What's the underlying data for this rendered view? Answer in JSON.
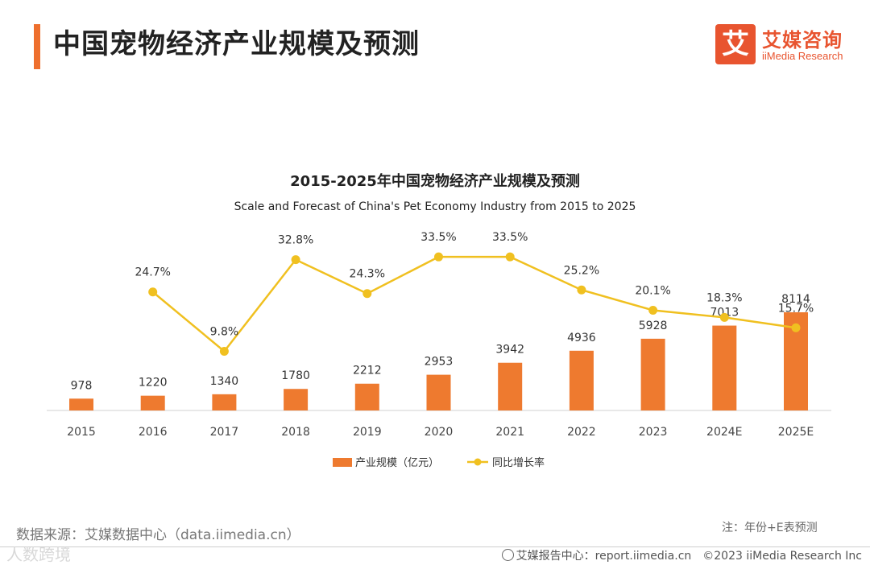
{
  "header": {
    "title": "中国宠物经济产业规模及预测",
    "logo_mark": "艾",
    "logo_cn": "艾媒咨询",
    "logo_en": "iiMedia Research",
    "accent_color": "#ee6f2d"
  },
  "chart_data": {
    "type": "bar",
    "title": "2015-2025年中国宠物经济产业规模及预测",
    "subtitle": "Scale and Forecast of China's Pet Economy Industry from 2015 to 2025",
    "categories": [
      "2015",
      "2016",
      "2017",
      "2018",
      "2019",
      "2020",
      "2021",
      "2022",
      "2023",
      "2024E",
      "2025E"
    ],
    "series": [
      {
        "name": "产业规模（亿元）",
        "type": "bar",
        "color": "#ee7a2f",
        "values": [
          978,
          1220,
          1340,
          1780,
          2212,
          2953,
          3942,
          4936,
          5928,
          7013,
          8114
        ],
        "labels": [
          "978",
          "1220",
          "1340",
          "1780",
          "2212",
          "2953",
          "3942",
          "4936",
          "5928",
          "7013",
          "8114"
        ]
      },
      {
        "name": "同比增长率",
        "type": "line",
        "color": "#f0c020",
        "values": [
          null,
          24.7,
          9.8,
          32.8,
          24.3,
          33.5,
          33.5,
          25.2,
          20.1,
          18.3,
          15.7
        ],
        "labels": [
          "",
          "24.7%",
          "9.8%",
          "32.8%",
          "24.3%",
          "33.5%",
          "33.5%",
          "25.2%",
          "20.1%",
          "18.3%",
          "15.7%"
        ]
      }
    ],
    "legend_position": "bottom",
    "grid": false
  },
  "footer": {
    "source": "数据来源：艾媒数据中心（data.iimedia.cn）",
    "note": "注：年份+E表预测",
    "watermark": "人数跨境",
    "report": "艾媒报告中心：report.iimedia.cn　©2023  iiMedia Research  Inc"
  }
}
